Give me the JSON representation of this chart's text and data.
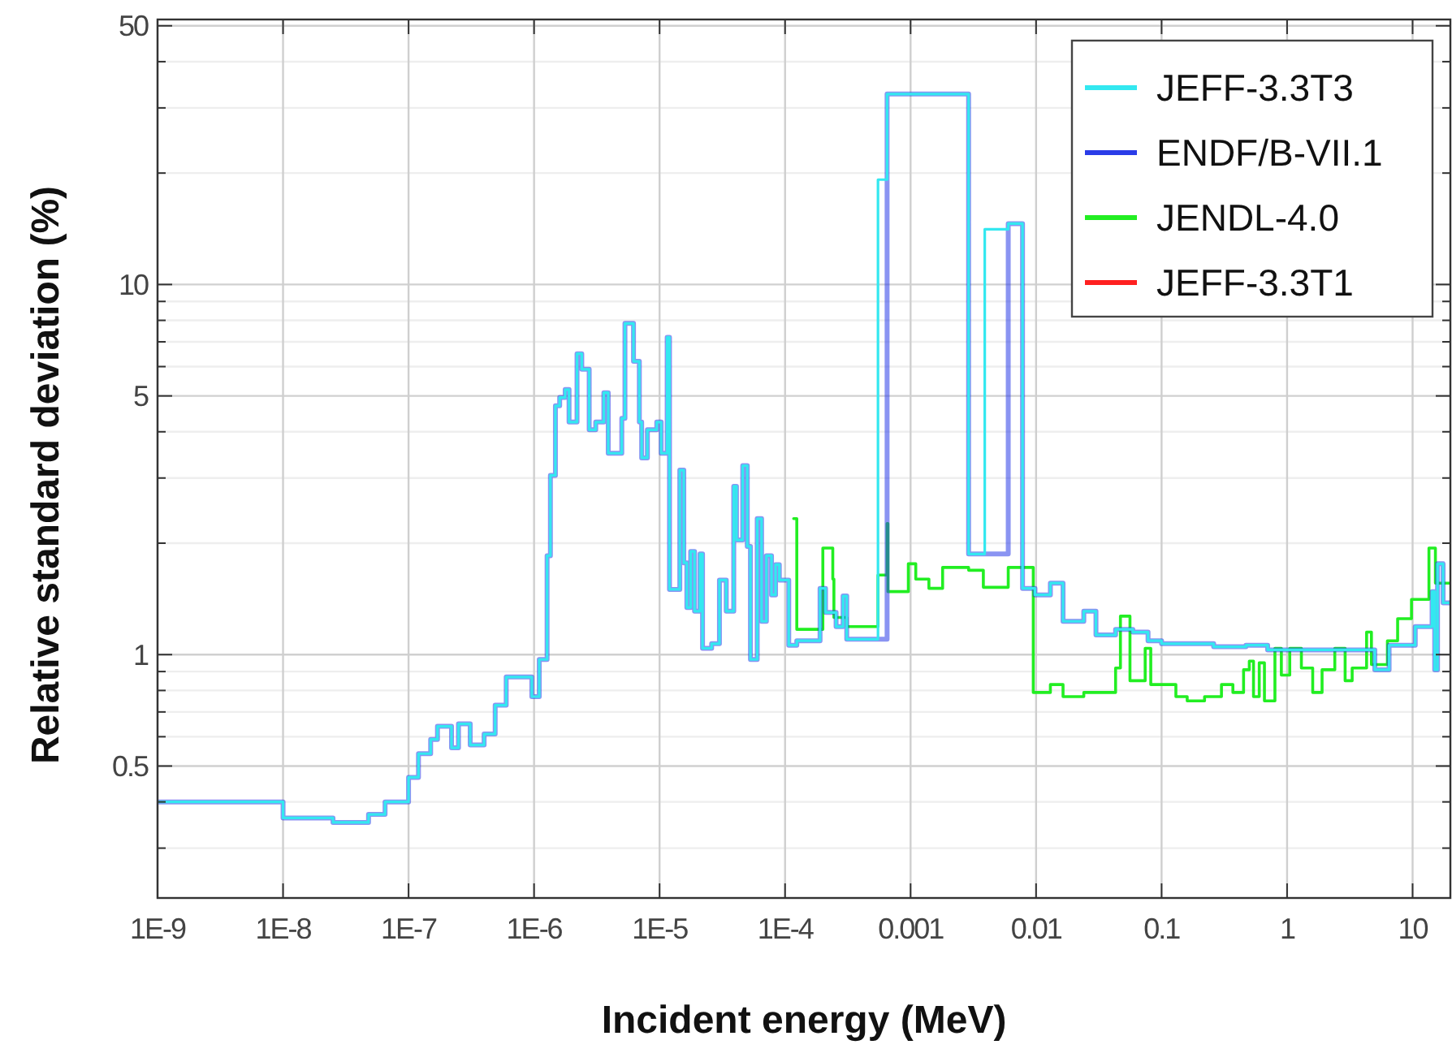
{
  "chart_data": {
    "type": "step",
    "xlabel": "Incident energy (MeV)",
    "ylabel": "Relative standard deviation (%)",
    "log": "xy",
    "grid": true,
    "legend": "top right",
    "xlim": [
      1e-09,
      20
    ],
    "ylim": [
      0.22,
      52
    ],
    "xticks": [
      {
        "value": 1e-09,
        "label": "1E-9"
      },
      {
        "value": 1e-08,
        "label": "1E-8"
      },
      {
        "value": 1e-07,
        "label": "1E-7"
      },
      {
        "value": 1e-06,
        "label": "1E-6"
      },
      {
        "value": 1e-05,
        "label": "1E-5"
      },
      {
        "value": 0.0001,
        "label": "1E-4"
      },
      0.001,
      0.01,
      0.1,
      1,
      10
    ],
    "yticks": [
      {
        "value": 0.3,
        "label": null
      },
      {
        "value": 0.4,
        "label": null
      },
      0.5,
      {
        "value": 0.6,
        "label": null
      },
      {
        "value": 0.7,
        "label": null
      },
      {
        "value": 0.8,
        "label": null
      },
      {
        "value": 0.9,
        "label": null
      },
      1,
      {
        "value": 2,
        "label": null
      },
      {
        "value": 3,
        "label": null
      },
      {
        "value": 4,
        "label": null
      },
      5,
      {
        "value": 6,
        "label": null
      },
      {
        "value": 7,
        "label": null
      },
      {
        "value": 8,
        "label": null
      },
      {
        "value": 9,
        "label": null
      },
      10,
      {
        "value": 20,
        "label": null
      },
      {
        "value": 30,
        "label": null
      },
      {
        "value": 40,
        "label": null
      },
      50
    ],
    "series": [
      {
        "name": "JEFF-3.3T3",
        "color": "#33e8f0",
        "x": [
          1e-09,
          1e-08,
          2.5e-08,
          4.8e-08,
          6.5e-08,
          1e-07,
          1.2e-07,
          1.5e-07,
          1.7e-07,
          2.2e-07,
          2.5e-07,
          3.1e-07,
          4e-07,
          4.9e-07,
          6e-07,
          7.7e-07,
          9.6e-07,
          1.1e-06,
          1.27e-06,
          1.35e-06,
          1.48e-06,
          1.6e-06,
          1.77e-06,
          1.9e-06,
          2.2e-06,
          2.4e-06,
          2.75e-06,
          3.1e-06,
          3.6e-06,
          3.9e-06,
          5e-06,
          5.3e-06,
          6.2e-06,
          6.9e-06,
          7.2e-06,
          8e-06,
          9.5e-06,
          1.03e-05,
          1.15e-05,
          1.2e-05,
          1.45e-05,
          1.56e-05,
          1.65e-05,
          1.77e-05,
          1.9e-05,
          2.1e-05,
          2.2e-05,
          2.6e-05,
          3e-05,
          3.4e-05,
          3.9e-05,
          4.1e-05,
          4.6e-05,
          5e-05,
          5.3e-05,
          6e-05,
          6.5e-05,
          7.1e-05,
          7.8e-05,
          8.4e-05,
          9e-05,
          0.000107,
          0.000124,
          0.00019,
          0.00021,
          0.000255,
          0.00029,
          0.00031,
          0.00055,
          0.00065,
          0.0029,
          0.0039,
          0.006,
          0.0078,
          0.0098,
          0.013,
          0.0164,
          0.024,
          0.03,
          0.043,
          0.059,
          0.078,
          0.1,
          0.26,
          0.47,
          0.7,
          5.0,
          6.5,
          10.5,
          14.3,
          15,
          15.8,
          17.5,
          20
        ],
        "values": [
          0.4,
          0.362,
          0.352,
          0.37,
          0.4,
          0.466,
          0.54,
          0.59,
          0.64,
          0.56,
          0.65,
          0.57,
          0.61,
          0.73,
          0.87,
          0.87,
          0.77,
          0.97,
          1.85,
          3.05,
          4.7,
          4.95,
          5.2,
          4.25,
          6.5,
          5.9,
          4.05,
          4.25,
          5.1,
          3.5,
          4.35,
          7.85,
          6.2,
          4.25,
          3.4,
          4.05,
          4.25,
          3.5,
          7.2,
          1.5,
          3.15,
          1.77,
          1.34,
          1.9,
          1.31,
          1.87,
          1.04,
          1.07,
          1.59,
          1.31,
          2.85,
          2.04,
          3.24,
          1.96,
          0.97,
          2.33,
          1.23,
          1.85,
          1.45,
          1.75,
          1.59,
          1.06,
          1.09,
          1.51,
          1.3,
          1.19,
          1.44,
          1.1,
          19.2,
          32.7,
          1.87,
          14.1,
          14.6,
          1.51,
          1.45,
          1.56,
          1.23,
          1.31,
          1.13,
          1.17,
          1.15,
          1.09,
          1.07,
          1.05,
          1.06,
          1.03,
          0.91,
          1.06,
          1.19,
          1.48,
          0.91,
          1.76,
          1.38,
          1.38
        ]
      },
      {
        "name": "ENDF/B-VII.1",
        "color": "#2a3ce8",
        "x": [
          1e-09,
          1e-08,
          2.5e-08,
          4.8e-08,
          6.5e-08,
          1e-07,
          1.2e-07,
          1.5e-07,
          1.7e-07,
          2.2e-07,
          2.5e-07,
          3.1e-07,
          4e-07,
          4.9e-07,
          6e-07,
          7.7e-07,
          9.6e-07,
          1.1e-06,
          1.27e-06,
          1.35e-06,
          1.48e-06,
          1.6e-06,
          1.77e-06,
          1.9e-06,
          2.2e-06,
          2.4e-06,
          2.75e-06,
          3.1e-06,
          3.6e-06,
          3.9e-06,
          5e-06,
          5.3e-06,
          6.2e-06,
          6.9e-06,
          7.2e-06,
          8e-06,
          9.5e-06,
          1.03e-05,
          1.15e-05,
          1.2e-05,
          1.45e-05,
          1.56e-05,
          1.65e-05,
          1.77e-05,
          1.9e-05,
          2.1e-05,
          2.2e-05,
          2.6e-05,
          3e-05,
          3.4e-05,
          3.9e-05,
          4.1e-05,
          4.6e-05,
          5e-05,
          5.3e-05,
          6e-05,
          6.5e-05,
          7.1e-05,
          7.8e-05,
          8.4e-05,
          9e-05,
          0.000107,
          0.000124,
          0.00019,
          0.00021,
          0.000255,
          0.00029,
          0.00031,
          0.00065,
          0.0029,
          0.006,
          0.0078,
          0.0098,
          0.013,
          0.0164,
          0.024,
          0.03,
          0.043,
          0.059,
          0.078,
          0.1,
          0.26,
          0.47,
          0.7,
          5.0,
          6.5,
          10.5,
          14.3,
          15,
          15.8,
          17.5,
          20
        ],
        "values": [
          0.4,
          0.362,
          0.352,
          0.37,
          0.4,
          0.466,
          0.54,
          0.59,
          0.64,
          0.56,
          0.65,
          0.57,
          0.61,
          0.73,
          0.87,
          0.87,
          0.77,
          0.97,
          1.85,
          3.05,
          4.7,
          4.95,
          5.2,
          4.25,
          6.5,
          5.9,
          4.05,
          4.25,
          5.1,
          3.5,
          4.35,
          7.85,
          6.2,
          4.25,
          3.4,
          4.05,
          4.25,
          3.5,
          7.2,
          1.5,
          3.15,
          1.77,
          1.34,
          1.9,
          1.31,
          1.87,
          1.04,
          1.07,
          1.59,
          1.31,
          2.85,
          2.04,
          3.24,
          1.96,
          0.97,
          2.33,
          1.23,
          1.85,
          1.45,
          1.75,
          1.59,
          1.06,
          1.09,
          1.51,
          1.3,
          1.19,
          1.44,
          1.1,
          32.7,
          1.87,
          14.6,
          1.51,
          1.45,
          1.56,
          1.23,
          1.31,
          1.13,
          1.17,
          1.15,
          1.09,
          1.07,
          1.05,
          1.06,
          1.03,
          0.91,
          1.06,
          1.19,
          1.48,
          0.91,
          1.76,
          1.38,
          1.38
        ]
      },
      {
        "name": "JENDL-4.0",
        "color": "#22ee22",
        "x": [
          0.000117,
          0.000124,
          0.0002,
          0.00024,
          0.000245,
          0.00031,
          0.00055,
          0.00065,
          0.00066,
          0.00096,
          0.0011,
          0.0014,
          0.0018,
          0.0029,
          0.0038,
          0.006,
          0.0095,
          0.013,
          0.0164,
          0.024,
          0.043,
          0.047,
          0.056,
          0.074,
          0.082,
          0.13,
          0.16,
          0.22,
          0.3,
          0.37,
          0.45,
          0.5,
          0.54,
          0.6,
          0.66,
          0.8,
          0.9,
          1.05,
          1.3,
          1.6,
          1.9,
          2.4,
          2.9,
          3.3,
          4.3,
          4.7,
          6.3,
          7.6,
          9.8,
          13.5,
          15.2,
          20
        ],
        "values": [
          2.33,
          1.17,
          1.94,
          1.6,
          1.26,
          1.19,
          1.64,
          2.26,
          1.48,
          1.76,
          1.6,
          1.51,
          1.72,
          1.69,
          1.52,
          1.72,
          0.79,
          0.83,
          0.77,
          0.79,
          0.92,
          1.27,
          0.85,
          1.04,
          0.83,
          0.77,
          0.75,
          0.77,
          0.83,
          0.79,
          0.91,
          0.96,
          0.77,
          0.95,
          0.75,
          1.04,
          0.88,
          1.04,
          0.92,
          0.79,
          0.91,
          1.04,
          0.85,
          0.92,
          1.15,
          0.94,
          1.09,
          1.25,
          1.41,
          1.94,
          1.56,
          1.56
        ]
      },
      {
        "name": "JEFF-3.3T1",
        "color": "#ff2020"
      }
    ]
  }
}
